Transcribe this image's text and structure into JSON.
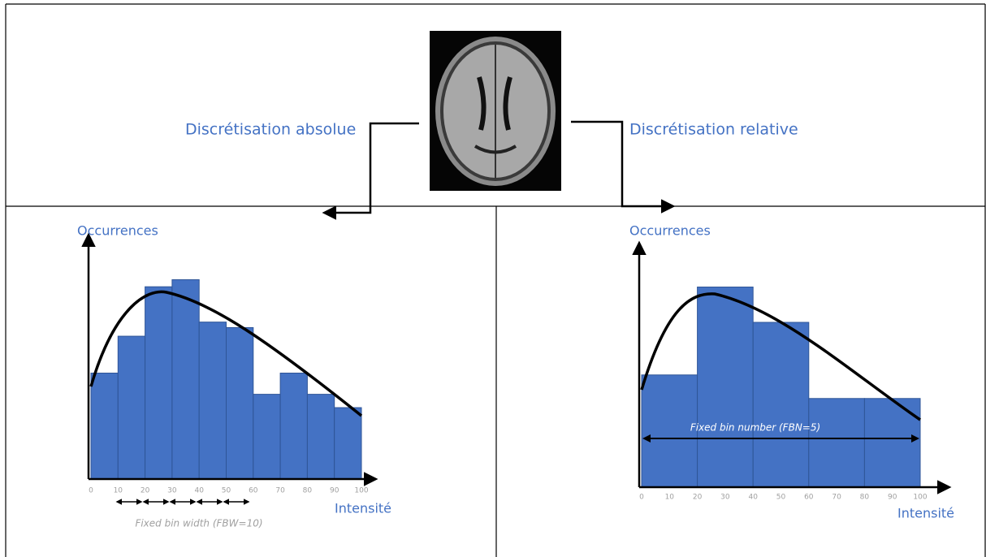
{
  "chart_data": [
    {
      "type": "histogram",
      "title": "Discrétisation absolue",
      "y_label": "Occurrences",
      "x_label": "Intensité",
      "annotation": "Fixed bin width (FBW=10)",
      "bins": [
        0,
        10,
        20,
        30,
        40,
        50,
        60,
        70,
        80,
        90,
        100
      ],
      "values": [
        135,
        182,
        245,
        254,
        200,
        193,
        108,
        135,
        108,
        91
      ],
      "xlim": [
        0,
        100
      ],
      "xticks": [
        0,
        10,
        20,
        30,
        40,
        50,
        60,
        70,
        80,
        90,
        100
      ],
      "ylim": [
        0,
        300
      ],
      "color": "#4472c4"
    },
    {
      "type": "histogram",
      "title": "Discrétisation relative",
      "y_label": "Occurrences",
      "x_label": "Intensité",
      "annotation": "Fixed bin number (FBN=5)",
      "bins": [
        0,
        20,
        40,
        60,
        80,
        100
      ],
      "values": [
        143,
        255,
        210,
        113,
        113
      ],
      "xlim": [
        0,
        100
      ],
      "xticks": [
        0,
        10,
        20,
        30,
        40,
        50,
        60,
        70,
        80,
        90,
        100
      ],
      "ylim": [
        0,
        300
      ],
      "color": "#4472c4"
    }
  ]
}
